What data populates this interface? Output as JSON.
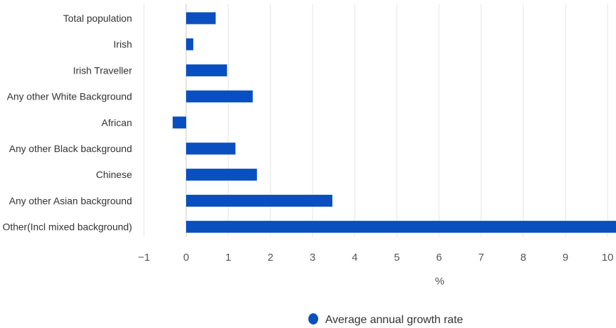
{
  "chart_data": {
    "type": "bar",
    "orientation": "horizontal",
    "categories": [
      "Total population",
      "Irish",
      "Irish Traveller",
      "Any other White Background",
      "African",
      "Any other Black background",
      "Chinese",
      "Any other Asian background",
      "Other(Incl mixed background)"
    ],
    "series": [
      {
        "name": "Average annual growth rate",
        "values": [
          0.7,
          0.17,
          0.97,
          1.58,
          -0.32,
          1.17,
          1.68,
          3.47,
          10.2
        ],
        "color": "#0a4fbf"
      }
    ],
    "title": "",
    "xlabel": "%",
    "ylabel": "",
    "xlim": [
      -1,
      10.2
    ],
    "xticks": [
      -1,
      0,
      1,
      2,
      3,
      4,
      5,
      6,
      7,
      8,
      9,
      10
    ],
    "xtick_labels": [
      "−1",
      "0",
      "1",
      "2",
      "3",
      "4",
      "5",
      "6",
      "7",
      "8",
      "9",
      "10"
    ],
    "grid": "vertical",
    "legend_position": "bottom"
  },
  "colors": {
    "bar": "#0a4fbf",
    "grid": "#e3e3e3",
    "zero_line": "#c9c9c9"
  }
}
